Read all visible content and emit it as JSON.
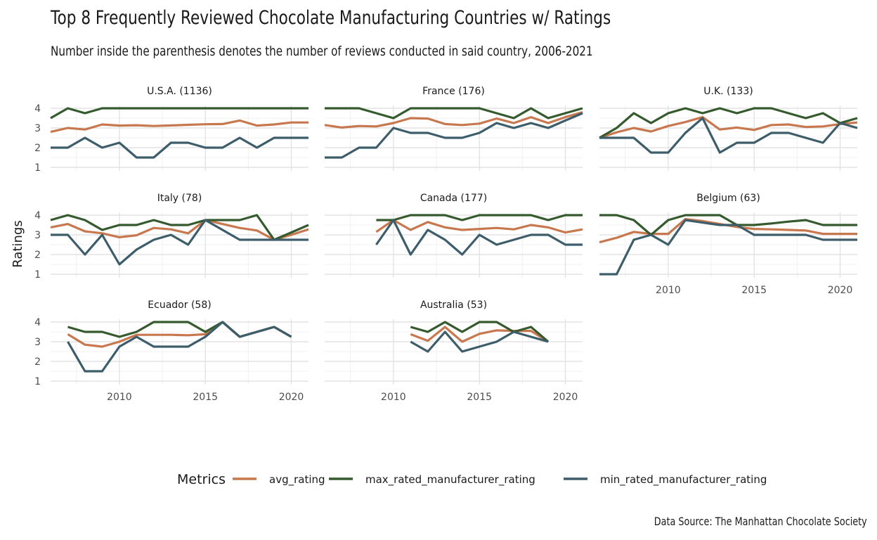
{
  "title": "Top 8 Frequently Reviewed Chocolate Manufacturing Countries w/ Ratings",
  "subtitle": "Number inside the parenthesis denotes the number of reviews conducted in said country, 2006-2021",
  "caption": "Data Source: The Manhattan Chocolate Society",
  "chart_data": {
    "type": "line",
    "ylabel": "Ratings",
    "xlabel": "",
    "xlim": [
      2006,
      2021
    ],
    "ylim": [
      1,
      4
    ],
    "x_ticks": [
      2010,
      2015,
      2020
    ],
    "y_ticks": [
      1,
      2,
      3,
      4
    ],
    "grid": true,
    "legend": {
      "title": "Metrics",
      "position": "bottom",
      "items": [
        {
          "label": "avg_rating",
          "color": "#c8784f"
        },
        {
          "label": "max_rated_manufacturer_rating",
          "color": "#345a2e"
        },
        {
          "label": "min_rated_manufacturer_rating",
          "color": "#3d5d6b"
        }
      ]
    },
    "panels": [
      {
        "title": "U.S.A. (1136)",
        "series": [
          {
            "name": "avg_rating",
            "x": [
              2006,
              2007,
              2008,
              2009,
              2010,
              2011,
              2012,
              2013,
              2014,
              2015,
              2016,
              2017,
              2018,
              2019,
              2020,
              2021
            ],
            "values": [
              2.8,
              3.0,
              2.92,
              3.18,
              3.12,
              3.14,
              3.1,
              3.13,
              3.16,
              3.19,
              3.2,
              3.38,
              3.12,
              3.18,
              3.28,
              3.28
            ]
          },
          {
            "name": "max_rated_manufacturer_rating",
            "x": [
              2006,
              2007,
              2008,
              2009,
              2010,
              2011,
              2012,
              2013,
              2014,
              2015,
              2016,
              2017,
              2018,
              2019,
              2020,
              2021
            ],
            "values": [
              3.5,
              4.0,
              3.75,
              4.0,
              4.0,
              4.0,
              4.0,
              4.0,
              4.0,
              4.0,
              4.0,
              4.0,
              4.0,
              4.0,
              4.0,
              4.0
            ]
          },
          {
            "name": "min_rated_manufacturer_rating",
            "x": [
              2006,
              2007,
              2008,
              2009,
              2010,
              2011,
              2012,
              2013,
              2014,
              2015,
              2016,
              2017,
              2018,
              2019,
              2020,
              2021
            ],
            "values": [
              2.0,
              2.0,
              2.5,
              2.0,
              2.25,
              1.5,
              1.5,
              2.25,
              2.25,
              2.0,
              2.0,
              2.5,
              2.0,
              2.5,
              2.5,
              2.5
            ]
          }
        ]
      },
      {
        "title": "France (176)",
        "series": [
          {
            "name": "avg_rating",
            "x": [
              2006,
              2007,
              2008,
              2009,
              2010,
              2011,
              2012,
              2013,
              2014,
              2015,
              2016,
              2017,
              2018,
              2019,
              2020,
              2021
            ],
            "values": [
              3.15,
              3.02,
              3.1,
              3.08,
              3.25,
              3.5,
              3.48,
              3.2,
              3.15,
              3.22,
              3.48,
              3.25,
              3.55,
              3.25,
              3.55,
              3.8
            ]
          },
          {
            "name": "max_rated_manufacturer_rating",
            "x": [
              2006,
              2007,
              2008,
              2009,
              2010,
              2011,
              2012,
              2013,
              2014,
              2015,
              2016,
              2017,
              2018,
              2019,
              2020,
              2021
            ],
            "values": [
              4.0,
              4.0,
              4.0,
              3.75,
              3.5,
              4.0,
              4.0,
              4.0,
              4.0,
              4.0,
              3.75,
              3.5,
              4.0,
              3.5,
              3.75,
              4.0
            ]
          },
          {
            "name": "min_rated_manufacturer_rating",
            "x": [
              2006,
              2007,
              2008,
              2009,
              2010,
              2011,
              2012,
              2013,
              2014,
              2015,
              2016,
              2017,
              2018,
              2019,
              2020,
              2021
            ],
            "values": [
              1.5,
              1.5,
              2.0,
              2.0,
              3.0,
              2.75,
              2.75,
              2.5,
              2.5,
              2.75,
              3.25,
              3.0,
              3.25,
              3.0,
              3.38,
              3.75
            ]
          }
        ]
      },
      {
        "title": "U.K. (133)",
        "series": [
          {
            "name": "avg_rating",
            "x": [
              2006,
              2007,
              2008,
              2009,
              2010,
              2011,
              2012,
              2013,
              2014,
              2015,
              2016,
              2017,
              2018,
              2019,
              2020,
              2021
            ],
            "values": [
              2.5,
              2.78,
              3.0,
              2.82,
              3.1,
              3.3,
              3.55,
              2.92,
              3.02,
              2.9,
              3.15,
              3.18,
              3.05,
              3.08,
              3.2,
              3.28
            ]
          },
          {
            "name": "max_rated_manufacturer_rating",
            "x": [
              2006,
              2007,
              2008,
              2009,
              2010,
              2011,
              2012,
              2013,
              2014,
              2015,
              2016,
              2017,
              2018,
              2019,
              2020,
              2021
            ],
            "values": [
              2.5,
              3.0,
              3.75,
              3.25,
              3.75,
              4.0,
              3.75,
              4.0,
              3.75,
              4.0,
              4.0,
              3.75,
              3.5,
              3.75,
              3.25,
              3.5
            ]
          },
          {
            "name": "min_rated_manufacturer_rating",
            "x": [
              2006,
              2007,
              2008,
              2009,
              2010,
              2011,
              2012,
              2013,
              2014,
              2015,
              2016,
              2017,
              2018,
              2019,
              2020,
              2021
            ],
            "values": [
              2.5,
              2.5,
              2.5,
              1.75,
              1.75,
              2.75,
              3.5,
              1.75,
              2.25,
              2.25,
              2.75,
              2.75,
              2.5,
              2.25,
              3.25,
              3.0
            ]
          }
        ]
      },
      {
        "title": "Italy (78)",
        "series": [
          {
            "name": "avg_rating",
            "x": [
              2006,
              2007,
              2008,
              2009,
              2010,
              2011,
              2012,
              2013,
              2014,
              2015,
              2016,
              2017,
              2018,
              2019,
              2020,
              2021
            ],
            "values": [
              3.38,
              3.55,
              3.18,
              3.08,
              2.88,
              2.98,
              3.35,
              3.28,
              3.08,
              3.75,
              3.55,
              3.35,
              3.22,
              2.75,
              3.0,
              3.28
            ]
          },
          {
            "name": "max_rated_manufacturer_rating",
            "x": [
              2006,
              2007,
              2008,
              2009,
              2010,
              2011,
              2012,
              2013,
              2014,
              2015,
              2016,
              2017,
              2018,
              2019,
              2020,
              2021
            ],
            "values": [
              3.75,
              4.0,
              3.75,
              3.25,
              3.5,
              3.5,
              3.75,
              3.5,
              3.5,
              3.75,
              3.75,
              3.75,
              4.0,
              2.75,
              3.12,
              3.5
            ]
          },
          {
            "name": "min_rated_manufacturer_rating",
            "x": [
              2006,
              2007,
              2008,
              2009,
              2010,
              2011,
              2012,
              2013,
              2014,
              2015,
              2016,
              2017,
              2018,
              2019,
              2020,
              2021
            ],
            "values": [
              3.0,
              3.0,
              2.0,
              3.0,
              1.5,
              2.25,
              2.75,
              3.0,
              2.5,
              3.75,
              3.25,
              2.75,
              2.75,
              2.75,
              2.75,
              2.75
            ]
          }
        ]
      },
      {
        "title": "Canada (177)",
        "series": [
          {
            "name": "avg_rating",
            "x": [
              2009,
              2010,
              2011,
              2012,
              2013,
              2014,
              2015,
              2016,
              2017,
              2018,
              2019,
              2020,
              2021
            ],
            "values": [
              3.15,
              3.75,
              3.25,
              3.65,
              3.38,
              3.25,
              3.3,
              3.35,
              3.28,
              3.5,
              3.38,
              3.12,
              3.28
            ]
          },
          {
            "name": "max_rated_manufacturer_rating",
            "x": [
              2009,
              2010,
              2011,
              2012,
              2013,
              2014,
              2015,
              2016,
              2017,
              2018,
              2019,
              2020,
              2021
            ],
            "values": [
              3.75,
              3.75,
              4.0,
              4.0,
              4.0,
              3.75,
              4.0,
              4.0,
              4.0,
              4.0,
              3.75,
              4.0,
              4.0
            ]
          },
          {
            "name": "min_rated_manufacturer_rating",
            "x": [
              2009,
              2010,
              2011,
              2012,
              2013,
              2014,
              2015,
              2016,
              2017,
              2018,
              2019,
              2020,
              2021
            ],
            "values": [
              2.5,
              3.75,
              2.0,
              3.25,
              2.75,
              2.0,
              3.0,
              2.5,
              2.75,
              3.0,
              3.0,
              2.5,
              2.5
            ]
          }
        ]
      },
      {
        "title": "Belgium (63)",
        "series": [
          {
            "name": "avg_rating",
            "x": [
              2006,
              2007,
              2008,
              2009,
              2010,
              2011,
              2012,
              2013,
              2014,
              2015,
              2016,
              2017,
              2018,
              2019,
              2020,
              2021
            ],
            "values": [
              2.62,
              2.85,
              3.15,
              3.05,
              3.05,
              3.8,
              3.7,
              3.55,
              3.4,
              3.3,
              3.28,
              3.25,
              3.22,
              3.05,
              3.05,
              3.05
            ]
          },
          {
            "name": "max_rated_manufacturer_rating",
            "x": [
              2006,
              2007,
              2008,
              2009,
              2010,
              2011,
              2012,
              2013,
              2014,
              2015,
              2016,
              2017,
              2018,
              2019,
              2020,
              2021
            ],
            "values": [
              4.0,
              4.0,
              3.75,
              3.0,
              3.75,
              4.0,
              4.0,
              4.0,
              3.5,
              3.5,
              3.58,
              3.67,
              3.75,
              3.5,
              3.5,
              3.5
            ]
          },
          {
            "name": "min_rated_manufacturer_rating",
            "x": [
              2006,
              2007,
              2008,
              2009,
              2010,
              2011,
              2012,
              2013,
              2014,
              2015,
              2016,
              2017,
              2018,
              2019,
              2020,
              2021
            ],
            "values": [
              1.0,
              1.0,
              2.75,
              3.0,
              2.5,
              3.75,
              3.62,
              3.5,
              3.5,
              3.0,
              3.0,
              3.0,
              3.0,
              2.75,
              2.75,
              2.75
            ]
          }
        ]
      },
      {
        "title": "Ecuador (58)",
        "series": [
          {
            "name": "avg_rating",
            "x": [
              2007,
              2008,
              2009,
              2010,
              2011,
              2012,
              2013,
              2014,
              2015,
              2016,
              2017,
              2018,
              2019,
              2020
            ],
            "values": [
              3.38,
              2.85,
              2.75,
              3.0,
              3.35,
              3.35,
              3.35,
              3.33,
              3.38,
              4.0,
              3.25,
              3.5,
              3.75,
              3.25
            ]
          },
          {
            "name": "max_rated_manufacturer_rating",
            "x": [
              2007,
              2008,
              2009,
              2010,
              2011,
              2012,
              2013,
              2014,
              2015,
              2016,
              2017,
              2018,
              2019,
              2020
            ],
            "values": [
              3.75,
              3.5,
              3.5,
              3.25,
              3.5,
              4.0,
              4.0,
              4.0,
              3.5,
              4.0,
              3.25,
              3.5,
              3.75,
              3.25
            ]
          },
          {
            "name": "min_rated_manufacturer_rating",
            "x": [
              2007,
              2008,
              2009,
              2010,
              2011,
              2012,
              2013,
              2014,
              2015,
              2016,
              2017,
              2018,
              2019,
              2020
            ],
            "values": [
              3.0,
              1.5,
              1.5,
              2.75,
              3.25,
              2.75,
              2.75,
              2.75,
              3.25,
              4.0,
              3.25,
              3.5,
              3.75,
              3.25
            ]
          }
        ]
      },
      {
        "title": "Australia (53)",
        "series": [
          {
            "name": "avg_rating",
            "x": [
              2011,
              2012,
              2013,
              2014,
              2015,
              2016,
              2017,
              2018,
              2019
            ],
            "values": [
              3.38,
              3.05,
              3.75,
              3.0,
              3.4,
              3.58,
              3.55,
              3.55,
              3.0
            ]
          },
          {
            "name": "max_rated_manufacturer_rating",
            "x": [
              2011,
              2012,
              2013,
              2014,
              2015,
              2016,
              2017,
              2018,
              2019
            ],
            "values": [
              3.75,
              3.5,
              4.0,
              3.5,
              4.0,
              4.0,
              3.5,
              3.75,
              3.0
            ]
          },
          {
            "name": "min_rated_manufacturer_rating",
            "x": [
              2011,
              2012,
              2013,
              2014,
              2015,
              2016,
              2017,
              2018,
              2019
            ],
            "values": [
              3.0,
              2.5,
              3.5,
              2.5,
              2.75,
              3.0,
              3.5,
              3.25,
              3.0
            ]
          }
        ]
      }
    ]
  }
}
